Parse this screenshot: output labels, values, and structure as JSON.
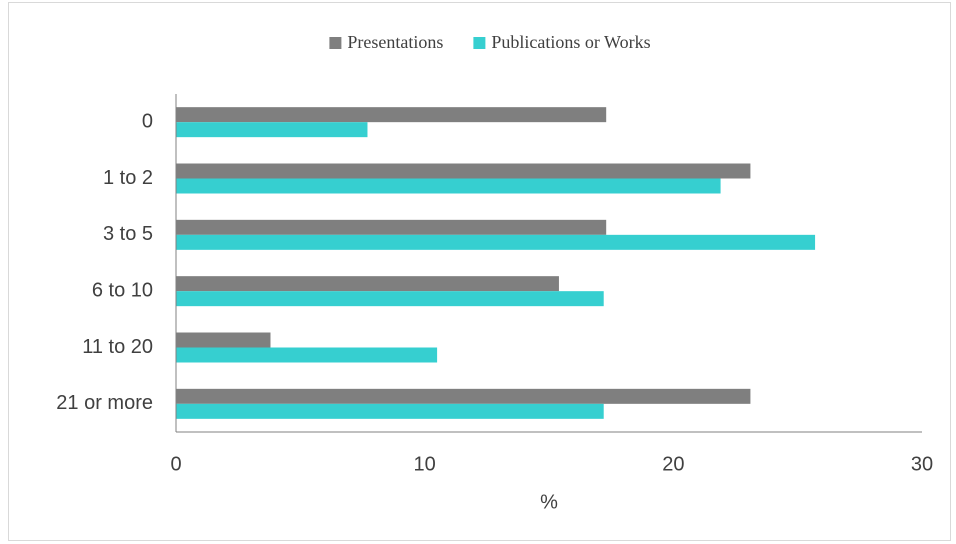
{
  "chart_data": {
    "type": "hbar",
    "categories": [
      "0",
      "1 to 2",
      "3 to 5",
      "6 to 10",
      "11 to 20",
      "21 or more"
    ],
    "series": [
      {
        "name": "Presentations",
        "color": "#7f7f7f",
        "values": [
          17.3,
          23.1,
          17.3,
          15.4,
          3.8,
          23.1
        ]
      },
      {
        "name": "Publications or Works",
        "color": "#36cfd0",
        "values": [
          7.7,
          21.9,
          25.7,
          17.2,
          10.5,
          17.2
        ]
      }
    ],
    "xlabel": "%",
    "xlim": [
      0,
      30
    ],
    "xticks": [
      0,
      10,
      20,
      30
    ],
    "legend": "top"
  }
}
